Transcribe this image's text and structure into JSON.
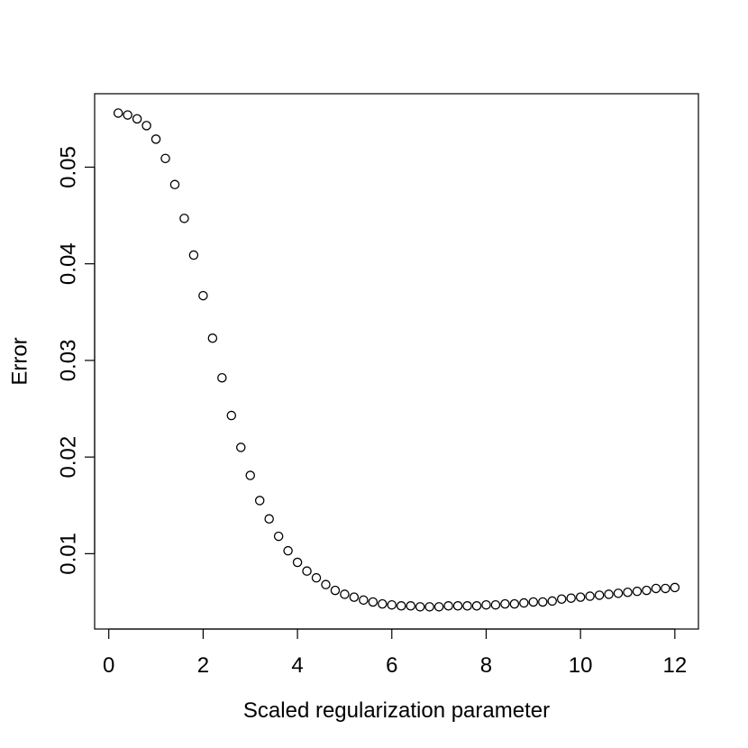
{
  "chart_data": {
    "type": "scatter",
    "title": "",
    "xlabel": "Scaled regularization parameter",
    "ylabel": "Error",
    "xlim": [
      -0.3,
      12.5
    ],
    "ylim": [
      0.0022,
      0.0576
    ],
    "xticks": [
      0,
      2,
      4,
      6,
      8,
      10,
      12
    ],
    "yticks": [
      0.01,
      0.02,
      0.03,
      0.04,
      0.05
    ],
    "ytick_labels": [
      "0.01",
      "0.02",
      "0.03",
      "0.04",
      "0.05"
    ],
    "grid": false,
    "legend": "none",
    "marker": "open-circle",
    "x": [
      0.2,
      0.4,
      0.6,
      0.8,
      1.0,
      1.2,
      1.4,
      1.6,
      1.8,
      2.0,
      2.2,
      2.4,
      2.6,
      2.8,
      3.0,
      3.2,
      3.4,
      3.6,
      3.8,
      4.0,
      4.2,
      4.4,
      4.6,
      4.8,
      5.0,
      5.2,
      5.4,
      5.6,
      5.8,
      6.0,
      6.2,
      6.4,
      6.6,
      6.8,
      7.0,
      7.2,
      7.4,
      7.6,
      7.8,
      8.0,
      8.2,
      8.4,
      8.6,
      8.8,
      9.0,
      9.2,
      9.4,
      9.6,
      9.8,
      10.0,
      10.2,
      10.4,
      10.6,
      10.8,
      11.0,
      11.2,
      11.4,
      11.6,
      11.8,
      12.0
    ],
    "y": [
      0.0556,
      0.0554,
      0.055,
      0.0543,
      0.0529,
      0.0509,
      0.0482,
      0.0447,
      0.0409,
      0.0367,
      0.0323,
      0.0282,
      0.0243,
      0.021,
      0.0181,
      0.0155,
      0.0136,
      0.0118,
      0.0103,
      0.0091,
      0.0082,
      0.0075,
      0.0068,
      0.0062,
      0.0058,
      0.0055,
      0.0052,
      0.005,
      0.0048,
      0.0047,
      0.0046,
      0.0046,
      0.0045,
      0.0045,
      0.0045,
      0.0046,
      0.0046,
      0.0046,
      0.0046,
      0.0047,
      0.0047,
      0.0048,
      0.0048,
      0.0049,
      0.005,
      0.005,
      0.0051,
      0.0053,
      0.0054,
      0.0055,
      0.0056,
      0.0057,
      0.0058,
      0.0059,
      0.006,
      0.0061,
      0.0062,
      0.0064,
      0.0064,
      0.0065
    ]
  }
}
